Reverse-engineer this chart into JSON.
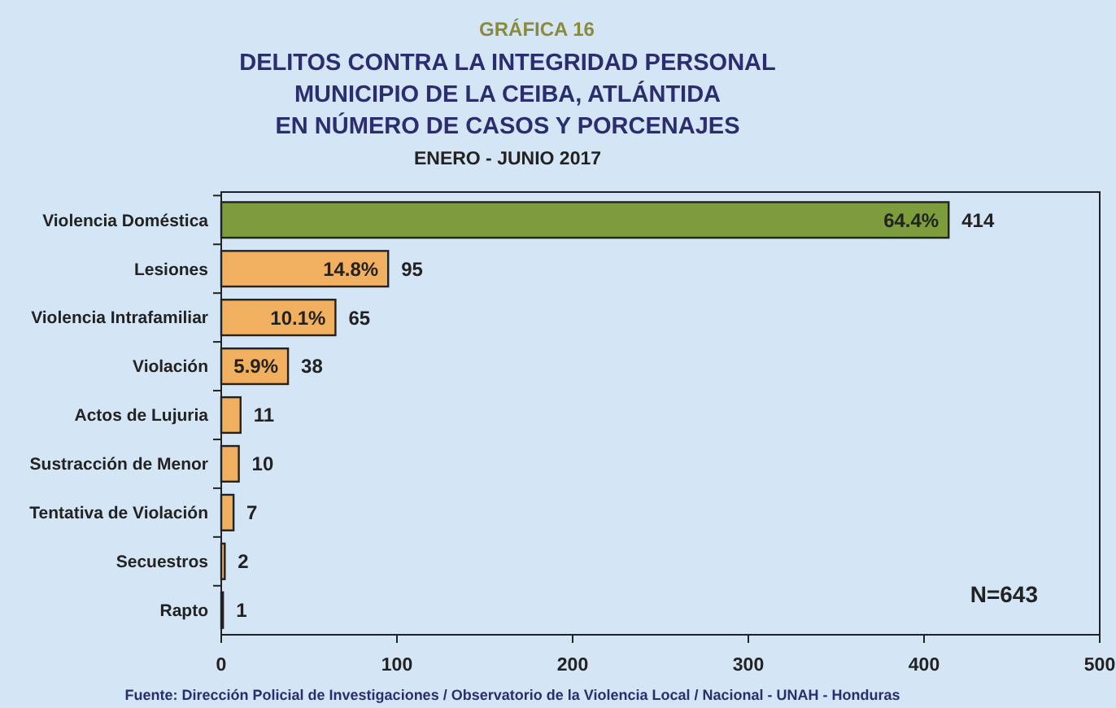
{
  "chart_data": {
    "type": "bar",
    "orientation": "horizontal",
    "title": "GRÁFICA 16\nDELITOS CONTRA LA INTEGRIDAD PERSONAL\nMUNICIPIO DE LA CEIBA, ATLÁNTIDA\nEN NÚMERO DE CASOS Y PORCENAJES",
    "subtitle": "ENERO - JUNIO 2017",
    "categories": [
      "Violencia Doméstica",
      "Lesiones",
      "Violencia Intrafamiliar",
      "Violación",
      "Actos de Lujuria",
      "Sustracción de Menor",
      "Tentativa de Violación",
      "Secuestros",
      "Rapto"
    ],
    "values": [
      414,
      95,
      65,
      38,
      11,
      10,
      7,
      2,
      1
    ],
    "colors": [
      "#7d9c3c",
      "#f0b060",
      "#f0b060",
      "#f0b060",
      "#f0b060",
      "#f0b060",
      "#f0b060",
      "#f0b060",
      "#f0b060"
    ],
    "xlim": [
      0,
      500
    ],
    "xticks": [
      0,
      100,
      200,
      300,
      400,
      500
    ],
    "data_labels": true,
    "annotations": [
      {
        "text": "64.4%",
        "x": 414,
        "y": "Violencia Doméstica"
      },
      {
        "text": "14.8%",
        "x": 95,
        "y": "Lesiones"
      },
      {
        "text": "10.1%",
        "x": 65,
        "y": "Violencia Intrafamiliar"
      },
      {
        "text": "5.9%",
        "x": 38,
        "y": "Violación"
      },
      "N=643",
      "Fuente: Dirección Policial de Investigaciones / Observatorio de la Violencia Local / Nacional - UNAH - Honduras"
    ]
  }
}
